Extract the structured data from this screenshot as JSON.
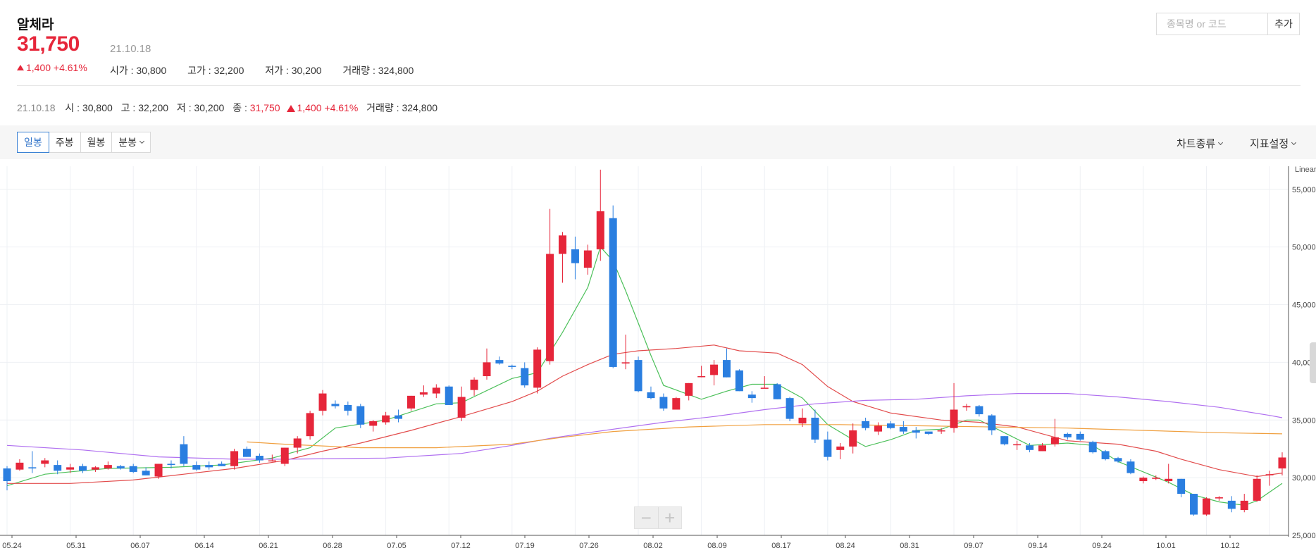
{
  "header": {
    "stock_name": "알체라",
    "price": "31,750",
    "date": "21.10.18",
    "change": "1,400 +4.61%",
    "open": "시가 : 30,800",
    "high": "고가 : 32,200",
    "low": "저가 : 30,200",
    "volume": "거래량 : 324,800"
  },
  "search": {
    "placeholder": "종목명 or 코드",
    "add_label": "추가"
  },
  "info": {
    "date": "21.10.18",
    "open": "시 : 30,800",
    "high": "고 : 32,200",
    "low": "저 : 30,200",
    "close_label": "종 :",
    "close": "31,750",
    "change": "1,400 +4.61%",
    "volume": "거래량 : 324,800"
  },
  "toolbar": {
    "periods": [
      "일봉",
      "주봉",
      "월봉",
      "분봉"
    ],
    "active_period": "일봉",
    "chart_type": "차트종류",
    "indicator": "지표설정"
  },
  "zoom": {
    "minus": "−",
    "plus": "+"
  },
  "colors": {
    "up": "#e6263a",
    "down": "#2a7ee0",
    "ma5": "#4cc05a",
    "ma20": "#e24b4b",
    "ma60": "#b070f0",
    "ma120": "#f0a040"
  },
  "chart_data": {
    "type": "candlestick",
    "scale_label": "Linear",
    "yaxis": {
      "ylim": [
        25000,
        57000
      ],
      "ticks": [
        25000,
        30000,
        35000,
        40000,
        45000,
        50000,
        55000
      ]
    },
    "x_ticks": [
      "05.24",
      "05.31",
      "06.07",
      "06.14",
      "06.21",
      "06.28",
      "07.05",
      "07.12",
      "07.19",
      "07.26",
      "08.02",
      "08.09",
      "08.17",
      "08.24",
      "08.31",
      "09.07",
      "09.14",
      "09.24",
      "10.01",
      "10.12"
    ],
    "candles": [
      [
        30800,
        31000,
        28900,
        29700
      ],
      [
        30700,
        31600,
        30600,
        31300
      ],
      [
        30900,
        32300,
        30400,
        30800
      ],
      [
        31200,
        31700,
        30900,
        31500
      ],
      [
        31100,
        31500,
        30300,
        30600
      ],
      [
        30700,
        31200,
        30400,
        30900
      ],
      [
        31000,
        31200,
        30400,
        30600
      ],
      [
        30700,
        31000,
        30500,
        30900
      ],
      [
        30800,
        31400,
        30700,
        31100
      ],
      [
        31000,
        31100,
        30700,
        30800
      ],
      [
        31000,
        31200,
        30400,
        30500
      ],
      [
        30600,
        30900,
        30200,
        30200
      ],
      [
        30100,
        31200,
        29900,
        31200
      ],
      [
        31200,
        31500,
        30800,
        31100
      ],
      [
        32900,
        33600,
        31000,
        31200
      ],
      [
        31100,
        31400,
        30600,
        30700
      ],
      [
        31100,
        31400,
        30700,
        30900
      ],
      [
        31200,
        31400,
        31000,
        31000
      ],
      [
        31000,
        32500,
        30700,
        32300
      ],
      [
        32500,
        32700,
        31800,
        31800
      ],
      [
        31900,
        32100,
        31300,
        31500
      ],
      [
        31500,
        32000,
        31400,
        31500
      ],
      [
        31200,
        32600,
        31000,
        32600
      ],
      [
        32600,
        33600,
        32100,
        33400
      ],
      [
        33600,
        35800,
        33300,
        35600
      ],
      [
        35800,
        37600,
        35400,
        37300
      ],
      [
        36400,
        36700,
        36000,
        36200
      ],
      [
        36300,
        36600,
        35400,
        35800
      ],
      [
        36200,
        36400,
        34300,
        34600
      ],
      [
        34500,
        35000,
        34000,
        34900
      ],
      [
        34800,
        35700,
        34600,
        35400
      ],
      [
        35400,
        35900,
        34800,
        35100
      ],
      [
        36000,
        37100,
        35800,
        37100
      ],
      [
        37200,
        38000,
        37000,
        37400
      ],
      [
        37300,
        38100,
        36900,
        37800
      ],
      [
        37900,
        38000,
        36300,
        36300
      ],
      [
        35200,
        37900,
        34900,
        37000
      ],
      [
        37600,
        38700,
        37100,
        38500
      ],
      [
        38800,
        41200,
        38500,
        40000
      ],
      [
        40200,
        40500,
        39800,
        39900
      ],
      [
        39700,
        39800,
        39400,
        39600
      ],
      [
        39500,
        40000,
        37800,
        38000
      ],
      [
        37800,
        41300,
        37300,
        41100
      ],
      [
        40100,
        53300,
        39800,
        49400
      ],
      [
        49400,
        51300,
        46900,
        51000
      ],
      [
        49800,
        50900,
        47200,
        48600
      ],
      [
        48200,
        50200,
        47600,
        49700
      ],
      [
        49800,
        56700,
        48800,
        53100
      ],
      [
        52500,
        53600,
        39500,
        39600
      ],
      [
        39900,
        42400,
        39400,
        40000
      ],
      [
        40200,
        40500,
        37400,
        37500
      ],
      [
        37400,
        37900,
        36800,
        36900
      ],
      [
        37000,
        37300,
        35800,
        36000
      ],
      [
        35900,
        37000,
        35900,
        36900
      ],
      [
        37100,
        38200,
        36700,
        38200
      ],
      [
        38800,
        39700,
        38700,
        38800
      ],
      [
        38900,
        40200,
        38000,
        39800
      ],
      [
        40200,
        41200,
        38700,
        38700
      ],
      [
        39300,
        39400,
        37500,
        37500
      ],
      [
        37200,
        37500,
        36500,
        36900
      ],
      [
        37800,
        38800,
        37800,
        37800
      ],
      [
        38100,
        38200,
        36800,
        36800
      ],
      [
        36900,
        37000,
        34900,
        35100
      ],
      [
        34700,
        36000,
        34400,
        35200
      ],
      [
        35200,
        35900,
        33000,
        33300
      ],
      [
        33300,
        34000,
        31500,
        31800
      ],
      [
        32400,
        33000,
        31600,
        32700
      ],
      [
        32700,
        34700,
        32100,
        34100
      ],
      [
        34900,
        35200,
        34100,
        34300
      ],
      [
        34000,
        34800,
        33700,
        34500
      ],
      [
        34700,
        34900,
        34200,
        34300
      ],
      [
        34400,
        34900,
        33800,
        34000
      ],
      [
        34100,
        34400,
        33400,
        33900
      ],
      [
        34000,
        34000,
        33700,
        33800
      ],
      [
        34100,
        34300,
        33800,
        34100
      ],
      [
        34300,
        38200,
        33900,
        35900
      ],
      [
        36100,
        36400,
        35800,
        36200
      ],
      [
        36200,
        36300,
        35300,
        35500
      ],
      [
        35400,
        35500,
        33700,
        34100
      ],
      [
        33600,
        33600,
        32800,
        32900
      ],
      [
        32900,
        33200,
        32400,
        32900
      ],
      [
        32800,
        33000,
        32200,
        32400
      ],
      [
        32300,
        33000,
        32300,
        32800
      ],
      [
        32900,
        35100,
        32700,
        33500
      ],
      [
        33800,
        33900,
        33300,
        33500
      ],
      [
        33800,
        34000,
        33200,
        33300
      ],
      [
        33100,
        33200,
        32100,
        32200
      ],
      [
        32300,
        32400,
        31500,
        31600
      ],
      [
        31700,
        31800,
        31300,
        31400
      ],
      [
        31400,
        31600,
        30300,
        30400
      ],
      [
        29700,
        30100,
        29500,
        30000
      ],
      [
        29900,
        30200,
        29800,
        30000
      ],
      [
        29700,
        31200,
        29500,
        29900
      ],
      [
        29900,
        29900,
        28300,
        28600
      ],
      [
        28600,
        28600,
        26700,
        26800
      ],
      [
        26800,
        28300,
        26700,
        28200
      ],
      [
        28200,
        28400,
        28000,
        28300
      ],
      [
        28000,
        28400,
        27000,
        27300
      ],
      [
        27200,
        28600,
        27000,
        28000
      ],
      [
        28000,
        30200,
        27900,
        29900
      ],
      [
        30300,
        30600,
        29300,
        30300
      ],
      [
        30800,
        32200,
        30200,
        31750
      ]
    ],
    "series": [
      {
        "name": "MA5",
        "color": "#4cc05a",
        "points": [
          [
            0,
            29300
          ],
          [
            3,
            30300
          ],
          [
            8,
            30800
          ],
          [
            13,
            30900
          ],
          [
            17,
            31100
          ],
          [
            21,
            31700
          ],
          [
            24,
            32600
          ],
          [
            26,
            34300
          ],
          [
            30,
            35000
          ],
          [
            34,
            36400
          ],
          [
            36,
            36500
          ],
          [
            40,
            38600
          ],
          [
            42,
            39100
          ],
          [
            44,
            42600
          ],
          [
            46,
            46500
          ],
          [
            47,
            50000
          ],
          [
            48,
            48800
          ],
          [
            49,
            46200
          ],
          [
            51,
            40600
          ],
          [
            52,
            38000
          ],
          [
            55,
            36800
          ],
          [
            57,
            37500
          ],
          [
            59,
            38100
          ],
          [
            61,
            38100
          ],
          [
            63,
            36900
          ],
          [
            65,
            34600
          ],
          [
            67,
            33300
          ],
          [
            68,
            32700
          ],
          [
            70,
            33300
          ],
          [
            72,
            34100
          ],
          [
            74,
            34200
          ],
          [
            76,
            35000
          ],
          [
            77,
            35000
          ],
          [
            79,
            33900
          ],
          [
            81,
            32800
          ],
          [
            84,
            33000
          ],
          [
            86,
            32800
          ],
          [
            88,
            31400
          ],
          [
            90,
            30500
          ],
          [
            92,
            29600
          ],
          [
            94,
            28500
          ],
          [
            96,
            27900
          ],
          [
            98,
            27600
          ],
          [
            99,
            28000
          ],
          [
            101,
            29500
          ]
        ]
      },
      {
        "name": "MA20",
        "color": "#e24b4b",
        "points": [
          [
            0,
            29500
          ],
          [
            5,
            29500
          ],
          [
            10,
            29800
          ],
          [
            14,
            30300
          ],
          [
            18,
            30800
          ],
          [
            22,
            31500
          ],
          [
            25,
            32300
          ],
          [
            28,
            33000
          ],
          [
            32,
            34100
          ],
          [
            36,
            35300
          ],
          [
            40,
            36600
          ],
          [
            42,
            37500
          ],
          [
            44,
            38800
          ],
          [
            46,
            39800
          ],
          [
            48,
            40700
          ],
          [
            50,
            41000
          ],
          [
            53,
            41200
          ],
          [
            56,
            41500
          ],
          [
            58,
            41000
          ],
          [
            61,
            40800
          ],
          [
            63,
            39800
          ],
          [
            65,
            37900
          ],
          [
            67,
            36600
          ],
          [
            70,
            35600
          ],
          [
            74,
            35000
          ],
          [
            77,
            34800
          ],
          [
            80,
            34400
          ],
          [
            84,
            33200
          ],
          [
            88,
            32900
          ],
          [
            91,
            32300
          ],
          [
            93,
            31600
          ],
          [
            96,
            30700
          ],
          [
            99,
            30100
          ],
          [
            101,
            30400
          ]
        ]
      },
      {
        "name": "MA60",
        "color": "#b070f0",
        "points": [
          [
            0,
            32800
          ],
          [
            6,
            32400
          ],
          [
            12,
            31800
          ],
          [
            18,
            31600
          ],
          [
            22,
            31600
          ],
          [
            30,
            31700
          ],
          [
            36,
            32100
          ],
          [
            40,
            32800
          ],
          [
            43,
            33400
          ],
          [
            46,
            33900
          ],
          [
            52,
            34800
          ],
          [
            56,
            35300
          ],
          [
            60,
            35900
          ],
          [
            64,
            36400
          ],
          [
            68,
            36700
          ],
          [
            72,
            36800
          ],
          [
            76,
            37100
          ],
          [
            80,
            37300
          ],
          [
            84,
            37300
          ],
          [
            88,
            37000
          ],
          [
            92,
            36600
          ],
          [
            96,
            36100
          ],
          [
            100,
            35400
          ],
          [
            101,
            35200
          ]
        ]
      },
      {
        "name": "MA120",
        "color": "#f0a040",
        "points": [
          [
            19,
            33100
          ],
          [
            22,
            32900
          ],
          [
            28,
            32600
          ],
          [
            34,
            32600
          ],
          [
            40,
            32900
          ],
          [
            44,
            33500
          ],
          [
            48,
            34000
          ],
          [
            54,
            34400
          ],
          [
            60,
            34600
          ],
          [
            66,
            34600
          ],
          [
            72,
            34500
          ],
          [
            78,
            34400
          ],
          [
            84,
            34300
          ],
          [
            90,
            34100
          ],
          [
            96,
            33900
          ],
          [
            101,
            33800
          ]
        ]
      }
    ]
  }
}
